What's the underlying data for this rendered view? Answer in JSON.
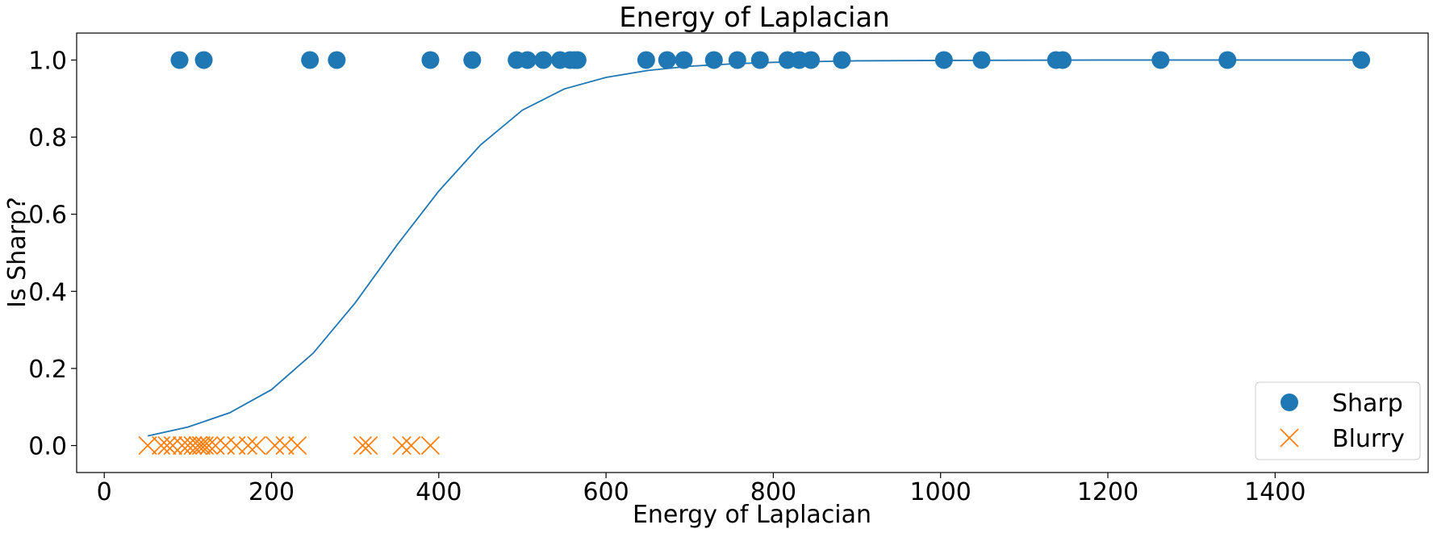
{
  "chart_data": {
    "type": "scatter",
    "title": "Energy of Laplacian",
    "xlabel": "Energy of Laplacian",
    "ylabel": "Is Sharp?",
    "xlim": [
      -33,
      1583
    ],
    "ylim": [
      -0.07,
      1.07
    ],
    "xticks": [
      0,
      200,
      400,
      600,
      800,
      1000,
      1200,
      1400
    ],
    "yticks": [
      0.0,
      0.2,
      0.4,
      0.6,
      0.8,
      1.0
    ],
    "xtick_labels": [
      "0",
      "200",
      "400",
      "600",
      "800",
      "1000",
      "1200",
      "1400"
    ],
    "ytick_labels": [
      "0.0",
      "0.2",
      "0.4",
      "0.6",
      "0.8",
      "1.0"
    ],
    "grid": false,
    "legend_position": "bottom-right",
    "series": [
      {
        "name": "Sharp",
        "marker": "circle",
        "color": "#1f77b4",
        "x": [
          90,
          119,
          246,
          278,
          390,
          440,
          493,
          506,
          525,
          545,
          557,
          562,
          566,
          648,
          673,
          693,
          729,
          757,
          784,
          817,
          831,
          845,
          882,
          1004,
          1049,
          1138,
          1146,
          1263,
          1343,
          1503
        ],
        "y": [
          1,
          1,
          1,
          1,
          1,
          1,
          1,
          1,
          1,
          1,
          1,
          1,
          1,
          1,
          1,
          1,
          1,
          1,
          1,
          1,
          1,
          1,
          1,
          1,
          1,
          1,
          1,
          1,
          1,
          1
        ]
      },
      {
        "name": "Blurry",
        "marker": "x",
        "color": "#ff7f0e",
        "x": [
          52,
          68,
          75,
          82,
          93,
          100,
          106,
          112,
          116,
          120,
          125,
          133,
          145,
          158,
          172,
          182,
          204,
          216,
          231,
          309,
          316,
          356,
          367,
          390
        ],
        "y": [
          0,
          0,
          0,
          0,
          0,
          0,
          0,
          0,
          0,
          0,
          0,
          0,
          0,
          0,
          0,
          0,
          0,
          0,
          0,
          0,
          0,
          0,
          0,
          0
        ]
      }
    ],
    "fit_curve": {
      "type": "logistic",
      "color": "#1f77b4",
      "x": [
        52,
        100,
        150,
        200,
        250,
        300,
        350,
        400,
        450,
        500,
        550,
        600,
        650,
        700,
        750,
        800,
        900,
        1000,
        1200,
        1400,
        1503
      ],
      "y": [
        0.025,
        0.048,
        0.085,
        0.145,
        0.24,
        0.37,
        0.52,
        0.66,
        0.78,
        0.87,
        0.925,
        0.955,
        0.973,
        0.984,
        0.99,
        0.994,
        0.998,
        0.999,
        1.0,
        1.0,
        1.0
      ]
    }
  }
}
